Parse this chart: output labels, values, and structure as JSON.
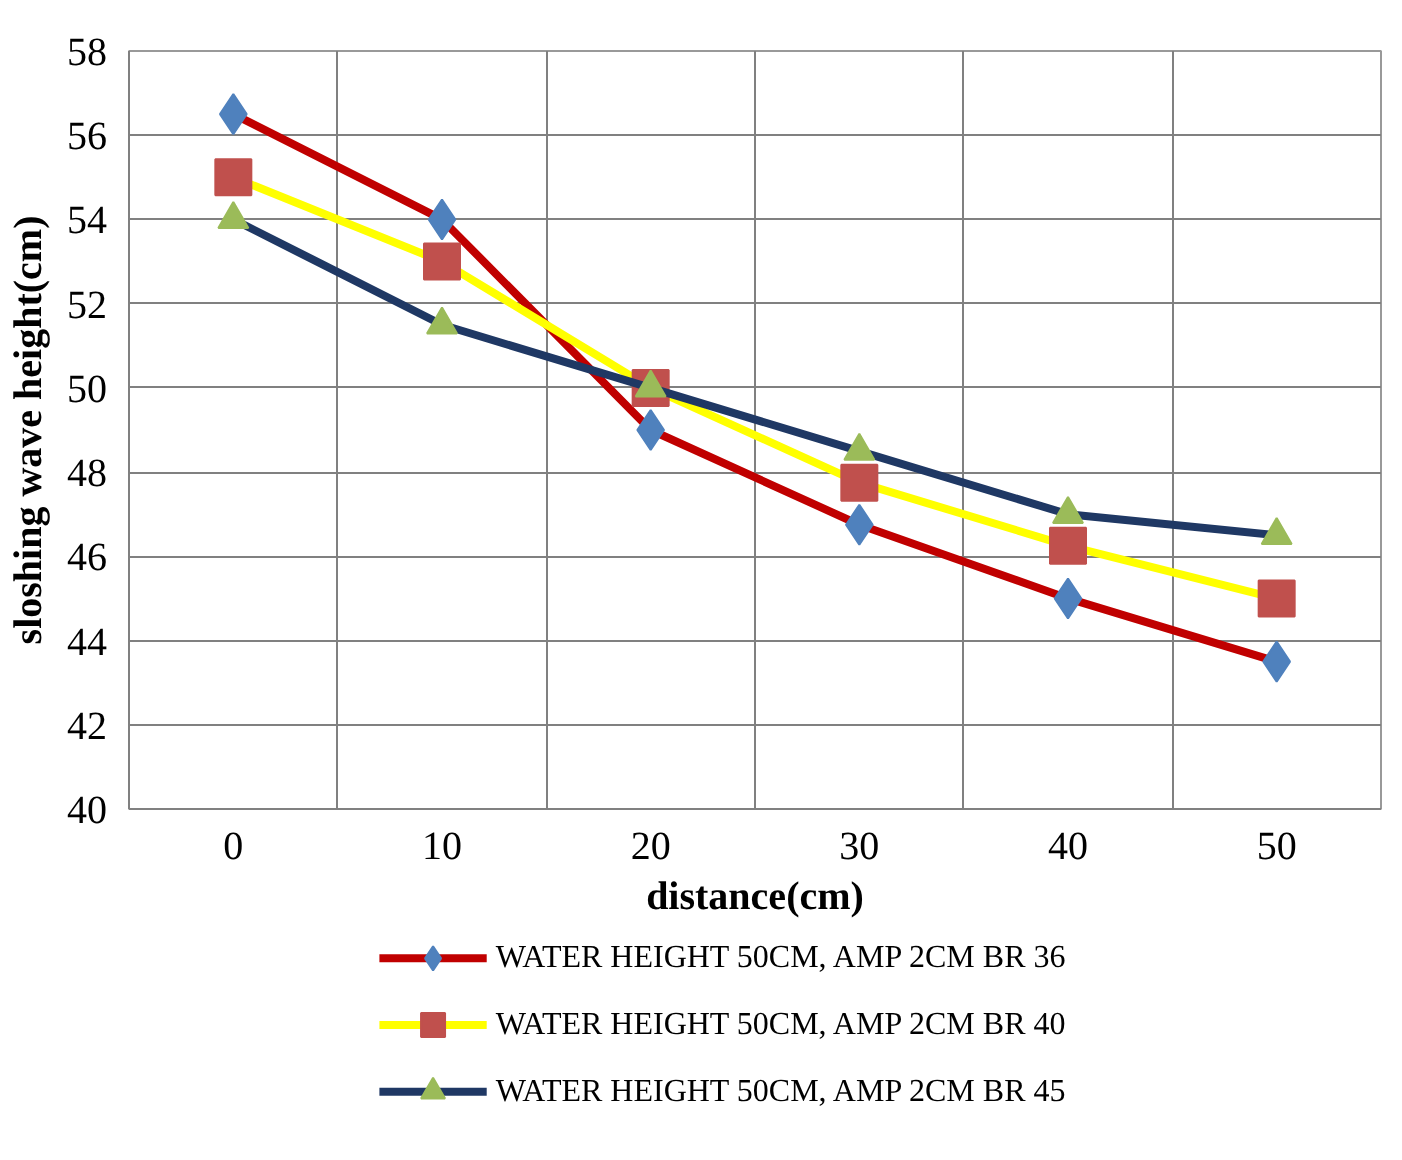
{
  "chart_data": {
    "type": "line",
    "xlabel": "distance(cm)",
    "ylabel": "sloshing wave height(cm)",
    "categories": [
      "0",
      "10",
      "20",
      "30",
      "40",
      "50"
    ],
    "ylim": [
      40,
      58
    ],
    "yticks": [
      40,
      42,
      44,
      46,
      48,
      50,
      52,
      54,
      56,
      58
    ],
    "grid": true,
    "legend": "bottom",
    "series": [
      {
        "name": "WATER HEIGHT 50CM, AMP 2CM BR 36",
        "color": "#c00000",
        "colors": [
          "#4f81bd",
          "#4f81bd",
          "#4f81bd",
          "#4f81bd",
          "#4f81bd",
          "#4f81bd"
        ],
        "marker": "diamond",
        "values": [
          56.5,
          54,
          49,
          46.75,
          45,
          43.5
        ]
      },
      {
        "name": "WATER HEIGHT 50CM, AMP 2CM BR 40",
        "color": "#ffff00",
        "colors": [
          "#c0504d",
          "#c0504d",
          "#c0504d",
          "#c0504d",
          "#c0504d",
          "#c0504d"
        ],
        "marker": "square",
        "values": [
          55,
          53,
          50,
          47.75,
          46.25,
          45
        ]
      },
      {
        "name": "WATER HEIGHT 50CM, AMP 2CM BR 45",
        "color": "#1f3864",
        "colors": [
          "#9bbb59",
          "#9bbb59",
          "#9bbb59",
          "#9bbb59",
          "#9bbb59",
          "#9bbb59"
        ],
        "marker": "triangle",
        "values": [
          54,
          51.5,
          50,
          48.5,
          47,
          46.5
        ]
      }
    ]
  }
}
